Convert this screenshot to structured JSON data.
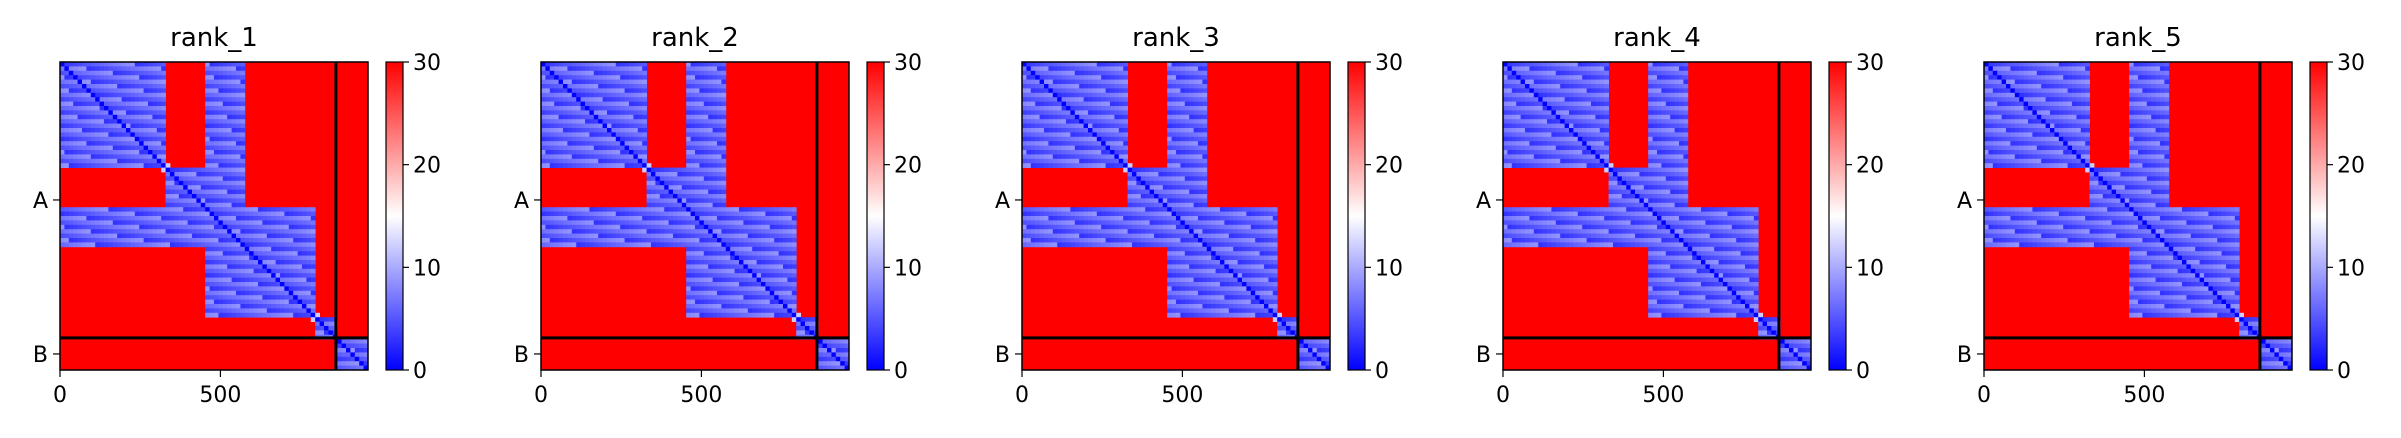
{
  "chart_data": [
    {
      "type": "heatmap",
      "title": "rank_1",
      "x_ticks": [
        "0",
        "500"
      ],
      "x_tick_values": [
        0,
        500
      ],
      "y_ticks": [
        "A",
        "B"
      ],
      "chains": {
        "A": {
          "start": 0,
          "end": 860
        },
        "B": {
          "start": 860,
          "end": 960
        }
      },
      "xlim": [
        0,
        960
      ],
      "ylim": [
        960,
        0
      ],
      "colorbar": {
        "min": 0,
        "max": 30,
        "ticks": [
          "0",
          "10",
          "20",
          "30"
        ],
        "tick_values": [
          0,
          10,
          20,
          30
        ],
        "colormap": "bwr"
      }
    },
    {
      "type": "heatmap",
      "title": "rank_2",
      "x_ticks": [
        "0",
        "500"
      ],
      "x_tick_values": [
        0,
        500
      ],
      "y_ticks": [
        "A",
        "B"
      ],
      "chains": {
        "A": {
          "start": 0,
          "end": 860
        },
        "B": {
          "start": 860,
          "end": 960
        }
      },
      "xlim": [
        0,
        960
      ],
      "ylim": [
        960,
        0
      ],
      "colorbar": {
        "min": 0,
        "max": 30,
        "ticks": [
          "0",
          "10",
          "20",
          "30"
        ],
        "tick_values": [
          0,
          10,
          20,
          30
        ],
        "colormap": "bwr"
      }
    },
    {
      "type": "heatmap",
      "title": "rank_3",
      "x_ticks": [
        "0",
        "500"
      ],
      "x_tick_values": [
        0,
        500
      ],
      "y_ticks": [
        "A",
        "B"
      ],
      "chains": {
        "A": {
          "start": 0,
          "end": 860
        },
        "B": {
          "start": 860,
          "end": 960
        }
      },
      "xlim": [
        0,
        960
      ],
      "ylim": [
        960,
        0
      ],
      "colorbar": {
        "min": 0,
        "max": 30,
        "ticks": [
          "0",
          "10",
          "20",
          "30"
        ],
        "tick_values": [
          0,
          10,
          20,
          30
        ],
        "colormap": "bwr"
      }
    },
    {
      "type": "heatmap",
      "title": "rank_4",
      "x_ticks": [
        "0",
        "500"
      ],
      "x_tick_values": [
        0,
        500
      ],
      "y_ticks": [
        "A",
        "B"
      ],
      "chains": {
        "A": {
          "start": 0,
          "end": 860
        },
        "B": {
          "start": 860,
          "end": 960
        }
      },
      "xlim": [
        0,
        960
      ],
      "ylim": [
        960,
        0
      ],
      "colorbar": {
        "min": 0,
        "max": 30,
        "ticks": [
          "0",
          "10",
          "20",
          "30"
        ],
        "tick_values": [
          0,
          10,
          20,
          30
        ],
        "colormap": "bwr"
      }
    },
    {
      "type": "heatmap",
      "title": "rank_5",
      "x_ticks": [
        "0",
        "500"
      ],
      "x_tick_values": [
        0,
        500
      ],
      "y_ticks": [
        "A",
        "B"
      ],
      "chains": {
        "A": {
          "start": 0,
          "end": 860
        },
        "B": {
          "start": 860,
          "end": 960
        }
      },
      "xlim": [
        0,
        960
      ],
      "ylim": [
        960,
        0
      ],
      "colorbar": {
        "min": 0,
        "max": 30,
        "ticks": [
          "0",
          "10",
          "20",
          "30"
        ],
        "tick_values": [
          0,
          10,
          20,
          30
        ],
        "colormap": "bwr"
      }
    }
  ],
  "colors": {
    "low": "#0000ff",
    "mid": "#ffffff",
    "high": "#ff0000",
    "chain_divider": "#000000"
  }
}
